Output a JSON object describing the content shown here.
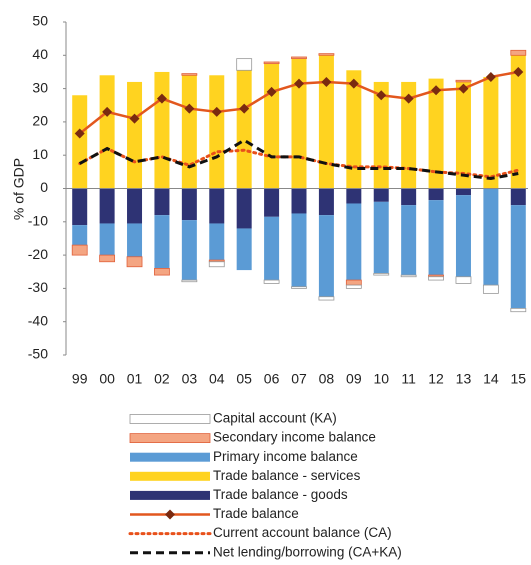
{
  "chart_data": {
    "type": "bar",
    "y_label": "% of GDP",
    "categories": [
      "99",
      "00",
      "01",
      "02",
      "03",
      "04",
      "05",
      "06",
      "07",
      "08",
      "09",
      "10",
      "11",
      "12",
      "13",
      "14",
      "15"
    ],
    "ylim": [
      -50,
      50
    ],
    "yticks": [
      50,
      40,
      30,
      20,
      10,
      0,
      -10,
      -20,
      -30,
      -40,
      -50
    ],
    "series": [
      {
        "name": "Trade balance - goods",
        "type": "bar",
        "color": "#2e3374",
        "values": [
          -11,
          -10.5,
          -10.5,
          -8,
          -9.5,
          -10.5,
          -12,
          -8.5,
          -7.5,
          -8,
          -4.5,
          -4,
          -5,
          -3.5,
          -2,
          0,
          -5
        ]
      },
      {
        "name": "Trade balance - services",
        "type": "bar",
        "color": "#ffd320",
        "values": [
          28,
          34,
          32,
          35,
          34,
          34,
          35.5,
          37.5,
          39,
          40,
          35.5,
          32,
          32,
          33,
          32,
          33.5,
          40
        ]
      },
      {
        "name": "Primary income balance",
        "type": "bar",
        "color": "#5b9bd5",
        "values": [
          -6,
          -9.5,
          -10,
          -16,
          -18,
          -11,
          -12.5,
          -19,
          -22,
          -24.5,
          -23,
          -21.5,
          -21,
          -22.5,
          -24.5,
          -29,
          -31
        ]
      },
      {
        "name": "Secondary income balance",
        "type": "bar",
        "color": "#f4a582",
        "values": [
          -3,
          -2,
          -3,
          -2,
          0.5,
          -0.5,
          0,
          0.5,
          0.5,
          0.5,
          -1.5,
          0,
          0,
          -0.5,
          0.5,
          0,
          1.5
        ]
      },
      {
        "name": "Capital account (KA)",
        "type": "bar",
        "color": "#ffffff",
        "values": [
          0,
          0,
          0,
          0,
          -0.5,
          -1.5,
          3.5,
          -1,
          -0.5,
          -1,
          -1,
          -0.5,
          -0.5,
          -1,
          -2,
          -2.5,
          -1
        ]
      },
      {
        "name": "Trade balance",
        "type": "line",
        "dash": "solid",
        "marker": "diamond",
        "color": "#e2571e",
        "values": [
          16.5,
          23,
          21,
          27,
          24,
          23,
          24,
          29,
          31.5,
          32,
          31.5,
          28,
          27,
          29.5,
          30,
          33.5,
          35
        ]
      },
      {
        "name": "Current account balance (CA)",
        "type": "line",
        "dash": "dotted",
        "color": "#e8501a",
        "values": [
          7.5,
          12,
          8,
          9.5,
          7,
          11,
          11.5,
          9.5,
          9.5,
          7.5,
          6.5,
          6.5,
          6,
          5,
          4.5,
          3.5,
          5.5
        ]
      },
      {
        "name": "Net lending/borrowing (CA+KA)",
        "type": "line",
        "dash": "dashed",
        "color": "#111111",
        "values": [
          7.5,
          12,
          8,
          9.5,
          6.5,
          9.5,
          14.5,
          9.5,
          9.5,
          7.5,
          6,
          6,
          6,
          5,
          4,
          3,
          4.5
        ]
      }
    ],
    "legend_order": [
      4,
      3,
      2,
      1,
      0,
      5,
      6,
      7
    ]
  }
}
